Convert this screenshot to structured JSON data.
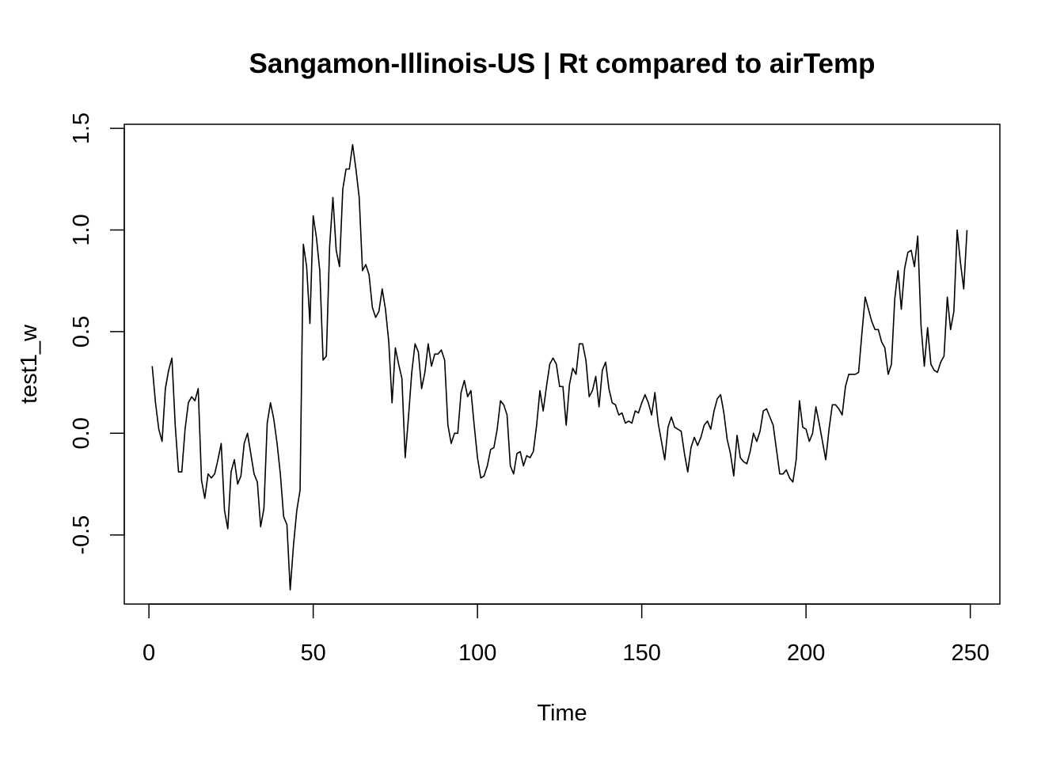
{
  "chart_data": {
    "type": "line",
    "title": "Sangamon-Illinois-US | Rt compared to airTemp",
    "xlabel": "Time",
    "ylabel": "test1_w",
    "xlim": [
      -7.5,
      259
    ],
    "ylim": [
      -0.84,
      1.52
    ],
    "x_ticks": [
      0,
      50,
      100,
      150,
      200,
      250
    ],
    "x_tick_labels": [
      "0",
      "50",
      "100",
      "150",
      "200",
      "250"
    ],
    "y_ticks": [
      -0.5,
      0.0,
      0.5,
      1.0,
      1.5
    ],
    "y_tick_labels": [
      "-0.5",
      "0.0",
      "0.5",
      "1.0",
      "1.5"
    ],
    "grid": false,
    "legend": "none",
    "line_color": "#000000",
    "series": [
      {
        "x_start": 1,
        "values": [
          0.33,
          0.15,
          0.02,
          -0.04,
          0.22,
          0.31,
          0.37,
          0.04,
          -0.19,
          -0.19,
          0.02,
          0.15,
          0.18,
          0.16,
          0.22,
          -0.23,
          -0.32,
          -0.2,
          -0.22,
          -0.2,
          -0.13,
          -0.05,
          -0.38,
          -0.47,
          -0.19,
          -0.13,
          -0.25,
          -0.21,
          -0.05,
          0.0,
          -0.1,
          -0.2,
          -0.24,
          -0.46,
          -0.37,
          0.05,
          0.15,
          0.07,
          -0.05,
          -0.2,
          -0.41,
          -0.45,
          -0.77,
          -0.55,
          -0.38,
          -0.28,
          0.93,
          0.82,
          0.54,
          1.07,
          0.96,
          0.8,
          0.36,
          0.38,
          0.92,
          1.16,
          0.9,
          0.82,
          1.2,
          1.3,
          1.3,
          1.42,
          1.3,
          1.16,
          0.8,
          0.83,
          0.78,
          0.62,
          0.57,
          0.6,
          0.71,
          0.61,
          0.45,
          0.15,
          0.42,
          0.34,
          0.27,
          -0.12,
          0.08,
          0.3,
          0.44,
          0.4,
          0.22,
          0.3,
          0.44,
          0.33,
          0.39,
          0.39,
          0.41,
          0.36,
          0.04,
          -0.05,
          0.0,
          0.0,
          0.2,
          0.26,
          0.18,
          0.21,
          0.04,
          -0.12,
          -0.22,
          -0.21,
          -0.16,
          -0.08,
          -0.07,
          0.02,
          0.16,
          0.14,
          0.09,
          -0.16,
          -0.2,
          -0.1,
          -0.09,
          -0.16,
          -0.11,
          -0.12,
          -0.09,
          0.04,
          0.21,
          0.11,
          0.23,
          0.34,
          0.37,
          0.34,
          0.23,
          0.23,
          0.04,
          0.24,
          0.32,
          0.29,
          0.44,
          0.44,
          0.36,
          0.18,
          0.21,
          0.28,
          0.13,
          0.31,
          0.35,
          0.22,
          0.15,
          0.14,
          0.09,
          0.1,
          0.05,
          0.06,
          0.05,
          0.11,
          0.1,
          0.15,
          0.19,
          0.15,
          0.09,
          0.2,
          0.05,
          -0.04,
          -0.13,
          0.03,
          0.08,
          0.03,
          0.02,
          0.01,
          -0.1,
          -0.19,
          -0.07,
          -0.02,
          -0.06,
          -0.02,
          0.04,
          0.06,
          0.02,
          0.11,
          0.17,
          0.19,
          0.1,
          -0.03,
          -0.1,
          -0.21,
          -0.01,
          -0.12,
          -0.14,
          -0.15,
          -0.09,
          0.0,
          -0.04,
          0.01,
          0.11,
          0.12,
          0.08,
          0.04,
          -0.08,
          -0.2,
          -0.2,
          -0.18,
          -0.22,
          -0.24,
          -0.13,
          0.16,
          0.03,
          0.02,
          -0.04,
          0.0,
          0.13,
          0.05,
          -0.04,
          -0.13,
          0.02,
          0.14,
          0.14,
          0.12,
          0.09,
          0.23,
          0.29,
          0.29,
          0.29,
          0.3,
          0.49,
          0.67,
          0.61,
          0.55,
          0.51,
          0.51,
          0.45,
          0.42,
          0.29,
          0.34,
          0.66,
          0.8,
          0.61,
          0.81,
          0.89,
          0.9,
          0.82,
          0.97,
          0.53,
          0.33,
          0.52,
          0.34,
          0.31,
          0.3,
          0.35,
          0.38,
          0.67,
          0.51,
          0.6,
          1.0,
          0.84,
          0.71,
          1.0
        ]
      }
    ]
  }
}
